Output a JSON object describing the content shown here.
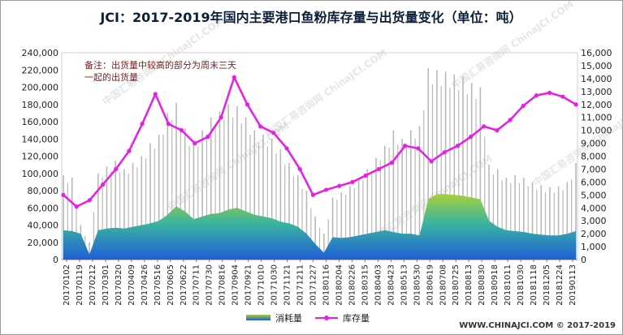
{
  "chart_data": {
    "type": "bar+line",
    "title": "JCI：2017-2019年国内主要港口鱼粉库存量与出货量变化（单位：吨）",
    "annotation": "备注：出货量中较高的部分为周末三天一起的出货量",
    "annotation_lines": [
      "备注：出货量中较高的部分为周末三天",
      "一起的出货量"
    ],
    "left_ylim": [
      0,
      240000
    ],
    "left_ticks": [
      "0",
      "20,000",
      "40,000",
      "60,000",
      "80,000",
      "100,000",
      "120,000",
      "140,000",
      "160,000",
      "180,000",
      "200,000",
      "220,000",
      "240,000"
    ],
    "right_ylim": [
      0,
      16000
    ],
    "right_ticks": [
      "0",
      "1,000",
      "2,000",
      "3,000",
      "4,000",
      "5,000",
      "6,000",
      "7,000",
      "8,000",
      "9,000",
      "10,000",
      "11,000",
      "12,000",
      "13,000",
      "14,000",
      "15,000",
      "16,000"
    ],
    "x_ticks": [
      "20170102",
      "20170119",
      "20170212",
      "20170301",
      "20170320",
      "20170409",
      "20170426",
      "20170516",
      "20170605",
      "20170622",
      "20170711",
      "20170730",
      "20170816",
      "20170904",
      "20170921",
      "20171010",
      "20171030",
      "20171121",
      "20171211",
      "20171227",
      "20180116",
      "20180204",
      "20180226",
      "20180315",
      "20180403",
      "20180423",
      "20180513",
      "20180530",
      "20180619",
      "20180708",
      "20180725",
      "20180813",
      "20180830",
      "20180918",
      "20181011",
      "20181030",
      "20181118",
      "20181205",
      "20181224",
      "20190113"
    ],
    "series": [
      {
        "name": "消耗量",
        "axis": "left",
        "values": [
          34000,
          33000,
          30000,
          6000,
          34000,
          36000,
          37000,
          36000,
          38000,
          40000,
          42000,
          45000,
          52000,
          62000,
          56000,
          47000,
          50000,
          53000,
          54000,
          58000,
          60000,
          56000,
          52000,
          50000,
          48000,
          44000,
          42000,
          38000,
          30000,
          18000,
          8000,
          26000,
          25000,
          26000,
          28000,
          30000,
          32000,
          34000,
          32000,
          30000,
          30000,
          28000,
          70000,
          76000,
          76000,
          75000,
          74000,
          72000,
          70000,
          45000,
          38000,
          34000,
          33000,
          32000,
          30000,
          29000,
          28000,
          28000,
          30000,
          33000
        ],
        "spikes": [
          98000,
          95000,
          40000,
          20000,
          100000,
          108000,
          115000,
          105000,
          112000,
          120000,
          135000,
          145000,
          170000,
          182000,
          152000,
          135000,
          150000,
          165000,
          172000,
          180000,
          178000,
          165000,
          150000,
          145000,
          140000,
          128000,
          112000,
          98000,
          80000,
          50000,
          30000,
          72000,
          78000,
          85000,
          95000,
          105000,
          118000,
          132000,
          150000,
          140000,
          150000,
          155000,
          222000,
          220000,
          218000,
          215000,
          212000,
          205000,
          200000,
          110000,
          105000,
          95000,
          98000,
          95000,
          90000,
          86000,
          84000,
          85000,
          90000,
          112000
        ]
      },
      {
        "name": "库存量",
        "axis": "right",
        "x_dates": [
          "20170102",
          "20170119",
          "20170212",
          "20170301",
          "20170320",
          "20170409",
          "20170426",
          "20170516",
          "20170605",
          "20170622",
          "20170711",
          "20170730",
          "20170816",
          "20170904",
          "20170921",
          "20171010",
          "20171030",
          "20171121",
          "20171211",
          "20171227",
          "20180116",
          "20180204",
          "20180226",
          "20180315",
          "20180403",
          "20180423",
          "20180513",
          "20180530",
          "20180619",
          "20180708",
          "20180725",
          "20180813",
          "20180830",
          "20180918",
          "20181011",
          "20181030",
          "20181118",
          "20181205",
          "20181224",
          "20190113"
        ],
        "values": [
          5000,
          4100,
          4600,
          5800,
          7000,
          8400,
          10500,
          12800,
          10500,
          10000,
          9000,
          9500,
          11000,
          14100,
          12000,
          10300,
          9800,
          8600,
          7000,
          5000,
          5400,
          5700,
          6000,
          6500,
          7000,
          7500,
          8800,
          8600,
          7600,
          8300,
          8800,
          9500,
          10300,
          10000,
          10800,
          11900,
          12700,
          12900,
          12600,
          12000
        ]
      }
    ],
    "legend": {
      "position": "bottom",
      "entries": [
        "消耗量",
        "库存量"
      ]
    },
    "colors": {
      "line": "#e61ee6",
      "bar_top": "#a6cf3a",
      "bar_mid": "#3ab4a0",
      "bar_bottom": "#1f5fd6",
      "spike": "#b9b9b9"
    }
  },
  "watermark": "中国汇易咨询网 ChinaJCI.COM",
  "footer": "WWW.CHINAJCI.COM © 2017-2019"
}
